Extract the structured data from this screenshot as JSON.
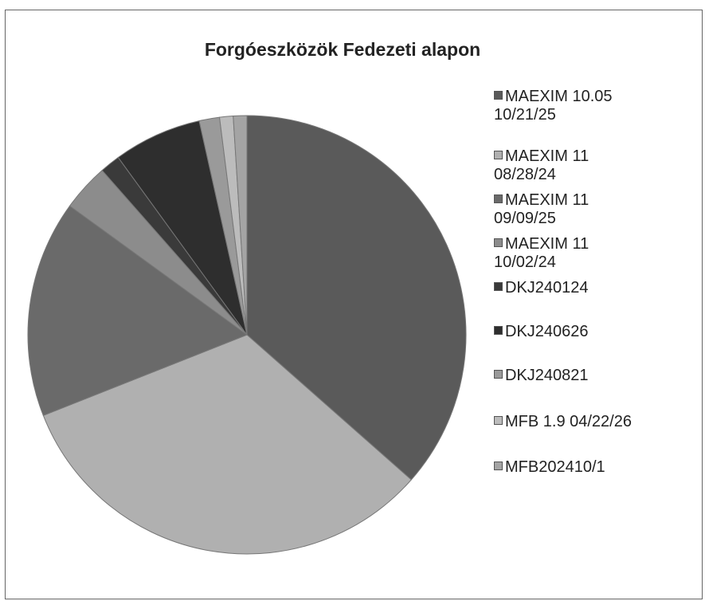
{
  "chart_data": {
    "type": "pie",
    "title": "Forgóeszközök Fedezeti alapon",
    "categories": [
      "MAEXIM 10.05 10/21/25",
      "MAEXIM 11 08/28/24",
      "MAEXIM 11 09/09/25",
      "MAEXIM 11 10/02/24",
      "DKJ240124",
      "DKJ240626",
      "DKJ240821",
      "MFB 1.9  04/22/26",
      "MFB202410/1"
    ],
    "values": [
      36.5,
      32.5,
      16,
      3.5,
      1.5,
      6.5,
      1.5,
      1,
      1
    ],
    "colors": [
      "#5a5a5a",
      "#b0b0b0",
      "#6a6a6a",
      "#8c8c8c",
      "#3a3a3a",
      "#2e2e2e",
      "#9a9a9a",
      "#bcbcbc",
      "#a4a4a4"
    ],
    "legend": "right"
  }
}
